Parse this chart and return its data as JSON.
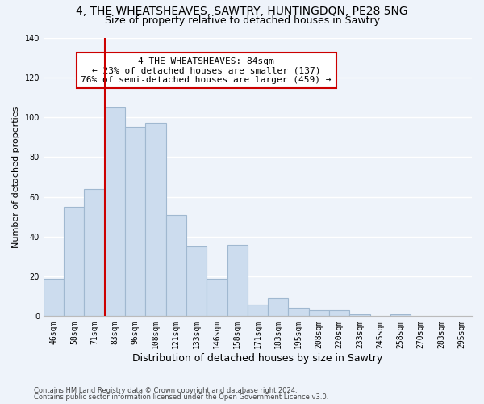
{
  "title": "4, THE WHEATSHEAVES, SAWTRY, HUNTINGDON, PE28 5NG",
  "subtitle": "Size of property relative to detached houses in Sawtry",
  "xlabel": "Distribution of detached houses by size in Sawtry",
  "ylabel": "Number of detached properties",
  "bar_values": [
    19,
    55,
    64,
    105,
    95,
    97,
    51,
    35,
    19,
    36,
    6,
    9,
    4,
    3,
    3,
    1,
    0,
    1,
    0,
    0,
    0
  ],
  "bar_labels": [
    "46sqm",
    "58sqm",
    "71sqm",
    "83sqm",
    "96sqm",
    "108sqm",
    "121sqm",
    "133sqm",
    "146sqm",
    "158sqm",
    "171sqm",
    "183sqm",
    "195sqm",
    "208sqm",
    "220sqm",
    "233sqm",
    "245sqm",
    "258sqm",
    "270sqm",
    "283sqm",
    "295sqm"
  ],
  "bar_color": "#ccdcee",
  "bar_edge_color": "#a0b8d0",
  "highlight_bar_index": 3,
  "highlight_line_color": "#cc0000",
  "annotation_text": "4 THE WHEATSHEAVES: 84sqm\n← 23% of detached houses are smaller (137)\n76% of semi-detached houses are larger (459) →",
  "annotation_box_color": "#ffffff",
  "annotation_box_edge": "#cc0000",
  "ylim": [
    0,
    140
  ],
  "yticks": [
    0,
    20,
    40,
    60,
    80,
    100,
    120,
    140
  ],
  "footnote1": "Contains HM Land Registry data © Crown copyright and database right 2024.",
  "footnote2": "Contains public sector information licensed under the Open Government Licence v3.0.",
  "background_color": "#eef3fa",
  "grid_color": "#ffffff",
  "title_fontsize": 10,
  "subtitle_fontsize": 9,
  "xlabel_fontsize": 9,
  "ylabel_fontsize": 8,
  "tick_fontsize": 7,
  "annotation_fontsize": 8
}
